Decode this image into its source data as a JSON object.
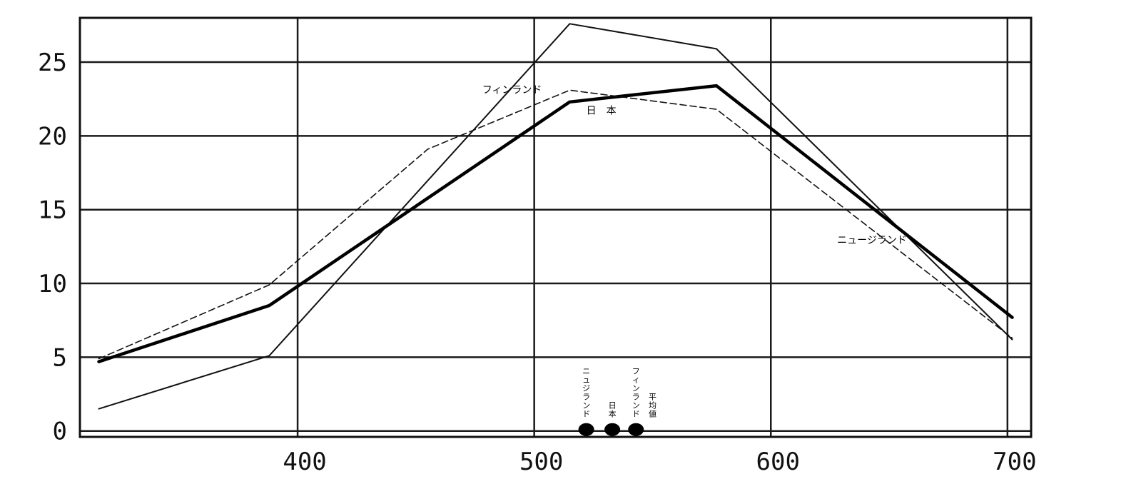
{
  "chart_data": {
    "type": "line",
    "title": "",
    "xlabel": "",
    "ylabel": "",
    "xlim": [
      308,
      710
    ],
    "ylim": [
      -0.4,
      28
    ],
    "xticks": [
      400,
      500,
      600,
      700
    ],
    "yticks": [
      0,
      5,
      10,
      15,
      20,
      25
    ],
    "grid": true,
    "series": [
      {
        "name": "フィンランド",
        "style": "thin",
        "points": [
          [
            316,
            1.5
          ],
          [
            388,
            5.1
          ],
          [
            515,
            27.6
          ],
          [
            577,
            25.9
          ],
          [
            702,
            6.2
          ]
        ]
      },
      {
        "name": "日本",
        "style": "thick",
        "points": [
          [
            316,
            4.7
          ],
          [
            388,
            8.5
          ],
          [
            515,
            22.3
          ],
          [
            577,
            23.4
          ],
          [
            702,
            7.7
          ]
        ]
      },
      {
        "name": "ニュージランド",
        "style": "dashed",
        "points": [
          [
            316,
            4.9
          ],
          [
            388,
            9.9
          ],
          [
            455,
            19.1
          ],
          [
            515,
            23.1
          ],
          [
            577,
            21.8
          ],
          [
            702,
            6.3
          ]
        ]
      }
    ],
    "series_labels": [
      {
        "text": "フィンランド",
        "x": 478,
        "y": 22.9
      },
      {
        "text": "日　本",
        "x": 522,
        "y": 21.5
      },
      {
        "text": "ニュージランド",
        "x": 628,
        "y": 12.7
      }
    ],
    "markers": [
      {
        "label": "ニュジランド",
        "x": 522
      },
      {
        "label": "日本",
        "x": 533
      },
      {
        "label": "フィンランド",
        "x": 543
      },
      {
        "label": "平均値",
        "x": 547
      }
    ]
  }
}
